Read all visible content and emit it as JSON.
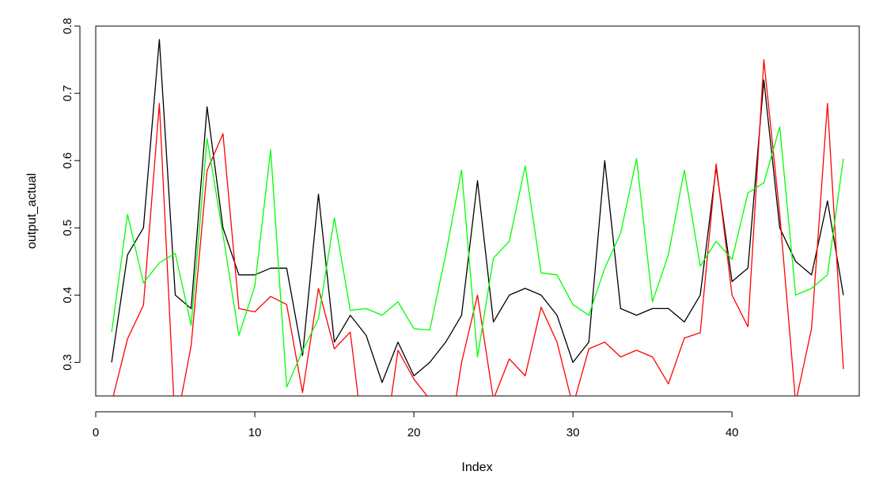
{
  "chart_data": {
    "type": "line",
    "title": "",
    "xlabel": "Index",
    "ylabel": "output_actual",
    "xlim": [
      0,
      48
    ],
    "ylim": [
      0.25,
      0.8
    ],
    "x_ticks": [
      0,
      10,
      20,
      30,
      40
    ],
    "x_tick_labels": [
      "0",
      "10",
      "20",
      "30",
      "40"
    ],
    "y_ticks": [
      0.3,
      0.4,
      0.5,
      0.6,
      0.7,
      0.8
    ],
    "y_tick_labels": [
      "0.3",
      "0.4",
      "0.5",
      "0.6",
      "0.7",
      "0.8"
    ],
    "grid": false,
    "legend": "none",
    "x": [
      1,
      2,
      3,
      4,
      5,
      6,
      7,
      8,
      9,
      10,
      11,
      12,
      13,
      14,
      15,
      16,
      17,
      18,
      19,
      20,
      21,
      22,
      23,
      24,
      25,
      26,
      27,
      28,
      29,
      30,
      31,
      32,
      33,
      34,
      35,
      36,
      37,
      38,
      39,
      40,
      41,
      42,
      43,
      44,
      45,
      46,
      47
    ],
    "series": [
      {
        "color": "#000000",
        "values": [
          0.3,
          0.46,
          0.5,
          0.78,
          0.4,
          0.38,
          0.68,
          0.5,
          0.43,
          0.43,
          0.44,
          0.44,
          0.31,
          0.55,
          0.33,
          0.37,
          0.34,
          0.27,
          0.33,
          0.28,
          0.3,
          0.33,
          0.37,
          0.57,
          0.36,
          0.4,
          0.41,
          0.4,
          0.37,
          0.3,
          0.33,
          0.6,
          0.38,
          0.37,
          0.38,
          0.38,
          0.36,
          0.4,
          0.59,
          0.42,
          0.44,
          0.72,
          0.5,
          0.45,
          0.43,
          0.54,
          0.4
        ]
      },
      {
        "color": "#ff0000",
        "values": [
          0.24,
          0.335,
          0.385,
          0.685,
          0.2,
          0.325,
          0.585,
          0.64,
          0.38,
          0.375,
          0.398,
          0.386,
          0.255,
          0.41,
          0.32,
          0.345,
          0.15,
          0.15,
          0.318,
          0.275,
          0.245,
          0.15,
          0.3,
          0.4,
          0.245,
          0.305,
          0.28,
          0.382,
          0.33,
          0.235,
          0.32,
          0.33,
          0.308,
          0.318,
          0.308,
          0.268,
          0.336,
          0.344,
          0.595,
          0.4,
          0.353,
          0.75,
          0.52,
          0.24,
          0.35,
          0.685,
          0.29
        ]
      },
      {
        "color": "#00ff00",
        "values": [
          0.345,
          0.52,
          0.418,
          0.448,
          0.462,
          0.355,
          0.633,
          0.49,
          0.34,
          0.413,
          0.616,
          0.263,
          0.317,
          0.365,
          0.515,
          0.377,
          0.38,
          0.37,
          0.39,
          0.35,
          0.348,
          0.46,
          0.586,
          0.308,
          0.455,
          0.48,
          0.592,
          0.433,
          0.43,
          0.386,
          0.37,
          0.44,
          0.492,
          0.603,
          0.39,
          0.46,
          0.586,
          0.443,
          0.48,
          0.453,
          0.552,
          0.567,
          0.65,
          0.4,
          0.41,
          0.43,
          0.603
        ]
      }
    ]
  }
}
